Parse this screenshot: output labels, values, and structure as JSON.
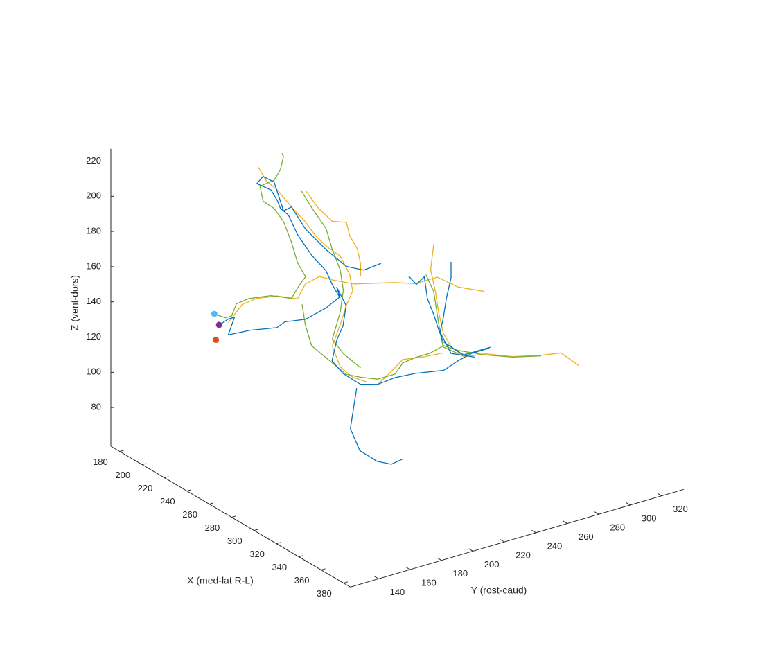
{
  "chart_data": {
    "type": "line3d",
    "xlabel": "X (med-lat R-L)",
    "ylabel": "Y (rost-caud)",
    "zlabel": "Z (vent-dors)",
    "xlim": [
      172,
      386
    ],
    "xticks": [
      180,
      200,
      220,
      240,
      260,
      280,
      300,
      320,
      340,
      360,
      380
    ],
    "ylim": [
      122,
      334
    ],
    "yticks": [
      140,
      160,
      180,
      200,
      220,
      240,
      260,
      280,
      300,
      320
    ],
    "zlim": [
      58,
      227
    ],
    "zticks": [
      80,
      100,
      120,
      140,
      160,
      180,
      200,
      220
    ],
    "series": [
      {
        "color": "#EDB120",
        "x": [
          260,
          260,
          260,
          260,
          260,
          260,
          260,
          260,
          260,
          260,
          260,
          260,
          260,
          260,
          260
        ],
        "y": [
          134,
          143,
          152,
          165,
          178,
          183,
          192,
          200,
          214,
          227,
          240,
          253,
          267,
          280,
          297
        ],
        "z": [
          158,
          166,
          167,
          165,
          160,
          167,
          169,
          165,
          159,
          156,
          153,
          149,
          149,
          140,
          133
        ]
      },
      {
        "color": "#EDB120",
        "x": [
          190,
          190,
          190,
          190,
          190,
          190,
          190,
          190,
          190,
          190,
          190,
          190,
          190,
          190,
          190,
          190
        ],
        "y": [
          203,
          208,
          215,
          224,
          233,
          239,
          246,
          255,
          261,
          263,
          259,
          255,
          250,
          255,
          263,
          272
        ],
        "z": [
          202,
          193,
          186,
          174,
          163,
          154,
          146,
          138,
          126,
          116,
          109,
          99,
          88,
          75,
          67,
          62
        ]
      },
      {
        "color": "#EDB120",
        "x": [
          190,
          190,
          190,
          190,
          190,
          190,
          190,
          190
        ],
        "y": [
          233,
          241,
          250,
          259,
          261,
          266,
          268,
          268
        ],
        "z": [
          181,
          169,
          159,
          156,
          148,
          139,
          130,
          123
        ]
      },
      {
        "color": "#EDB120",
        "x": [
          320,
          320,
          320,
          320,
          320,
          320,
          320,
          320,
          320,
          320,
          320,
          320
        ],
        "y": [
          222,
          220,
          223,
          225,
          228,
          233,
          241,
          255,
          272,
          290,
          303,
          314
        ],
        "z": [
          202,
          188,
          175,
          163,
          150,
          141,
          133,
          131,
          125,
          121,
          119,
          109
        ]
      },
      {
        "color": "#EDB120",
        "x": [
          260,
          260,
          260,
          260,
          260
        ],
        "y": [
          229,
          236,
          245,
          258,
          271
        ],
        "z": [
          98,
          102,
          108,
          106,
          105
        ]
      },
      {
        "color": "#77AC30",
        "x": [
          190,
          190,
          190,
          190,
          190,
          190,
          190,
          190,
          190,
          190,
          190,
          190,
          190,
          190,
          190,
          190,
          190,
          190,
          190
        ],
        "y": [
          175,
          182,
          186,
          189,
          197,
          211,
          224,
          228,
          233,
          228,
          224,
          219,
          213,
          206,
          204,
          213,
          217,
          219,
          218
        ],
        "z": [
          126,
          122,
          122,
          128,
          129,
          127,
          122,
          127,
          132,
          141,
          154,
          167,
          176,
          182,
          191,
          192,
          197,
          204,
          206
        ]
      },
      {
        "color": "#77AC30",
        "x": [
          260,
          260,
          260,
          260,
          260,
          260,
          260,
          260,
          260,
          260,
          260,
          260,
          260,
          260,
          260,
          260
        ],
        "y": [
          181,
          183,
          187,
          198,
          209,
          218,
          229,
          240,
          245,
          253,
          262,
          271,
          280,
          297,
          315,
          333
        ],
        "z": [
          156,
          144,
          131,
          120,
          109,
          105,
          101,
          101,
          106,
          107,
          107,
          109,
          104,
          97,
          91,
          87
        ]
      },
      {
        "color": "#77AC30",
        "x": [
          320,
          320,
          320,
          320,
          320,
          320,
          320
        ],
        "y": [
          217,
          222,
          224,
          226,
          228,
          237,
          250
        ],
        "z": [
          186,
          175,
          163,
          151,
          142,
          136,
          133
        ]
      },
      {
        "color": "#77AC30",
        "x": [
          190,
          190,
          190,
          190,
          190,
          190,
          190,
          190,
          190,
          190
        ],
        "y": [
          230,
          237,
          246,
          250,
          255,
          257,
          255,
          250,
          257,
          268
        ],
        "z": [
          182,
          170,
          156,
          143,
          130,
          118,
          106,
          92,
          82,
          71
        ]
      },
      {
        "color": "#0072BD",
        "x": [
          260,
          260,
          260,
          260,
          260,
          260,
          260,
          260,
          260,
          260,
          260,
          260,
          260,
          260,
          260,
          260,
          260,
          260,
          260,
          260,
          260,
          260,
          260,
          260
        ],
        "y": [
          128,
          134,
          138,
          134,
          148,
          165,
          170,
          183,
          196,
          205,
          203,
          209,
          207,
          203,
          200,
          207,
          218,
          229,
          240,
          253,
          271,
          280,
          289,
          300
        ],
        "z": [
          158,
          160,
          160,
          151,
          150,
          147,
          149,
          147,
          150,
          154,
          160,
          148,
          137,
          130,
          119,
          110,
          101,
          98,
          99,
          98,
          95,
          98,
          100,
          100
        ]
      },
      {
        "color": "#0072BD",
        "x": [
          320,
          320,
          320,
          320,
          320,
          320,
          320
        ],
        "y": [
          173,
          171,
          169,
          175,
          186,
          195,
          202
        ],
        "z": [
          133,
          122,
          111,
          97,
          88,
          84,
          85
        ]
      },
      {
        "color": "#0072BD",
        "x": [
          190,
          190,
          190,
          190,
          190,
          190,
          190,
          190,
          190,
          190,
          190,
          190,
          190,
          190,
          190,
          190,
          190,
          190,
          190,
          190
        ],
        "y": [
          255,
          250,
          246,
          237,
          228,
          222,
          217,
          215,
          211,
          202,
          206,
          213,
          217,
          219,
          224,
          233,
          246,
          259,
          270,
          281
        ],
        "z": [
          114,
          123,
          132,
          143,
          157,
          170,
          175,
          180,
          187,
          193,
          196,
          191,
          179,
          173,
          174,
          159,
          144,
          131,
          126,
          127
        ]
      },
      {
        "color": "#0072BD",
        "x": [
          320,
          320,
          320,
          320,
          320,
          320,
          320,
          320,
          320,
          320,
          320
        ],
        "y": [
          206,
          211,
          216,
          218,
          222,
          225,
          228,
          235,
          241,
          250,
          258
        ],
        "z": [
          188,
          182,
          185,
          172,
          162,
          153,
          145,
          139,
          134,
          134,
          134
        ]
      },
      {
        "color": "#0072BD",
        "x": [
          320,
          320,
          320,
          320,
          320,
          320,
          320
        ],
        "y": [
          233,
          233,
          230,
          228,
          226,
          233,
          248
        ],
        "z": [
          189,
          180,
          169,
          158,
          151,
          137,
          131
        ]
      }
    ],
    "points": [
      {
        "color": "#4DBEEE",
        "x": 190,
        "y": 175,
        "z": 126
      },
      {
        "color": "#7E2F8E",
        "x": 190,
        "y": 178,
        "z": 119
      },
      {
        "color": "#D95319",
        "x": 190,
        "y": 176,
        "z": 111
      }
    ]
  }
}
